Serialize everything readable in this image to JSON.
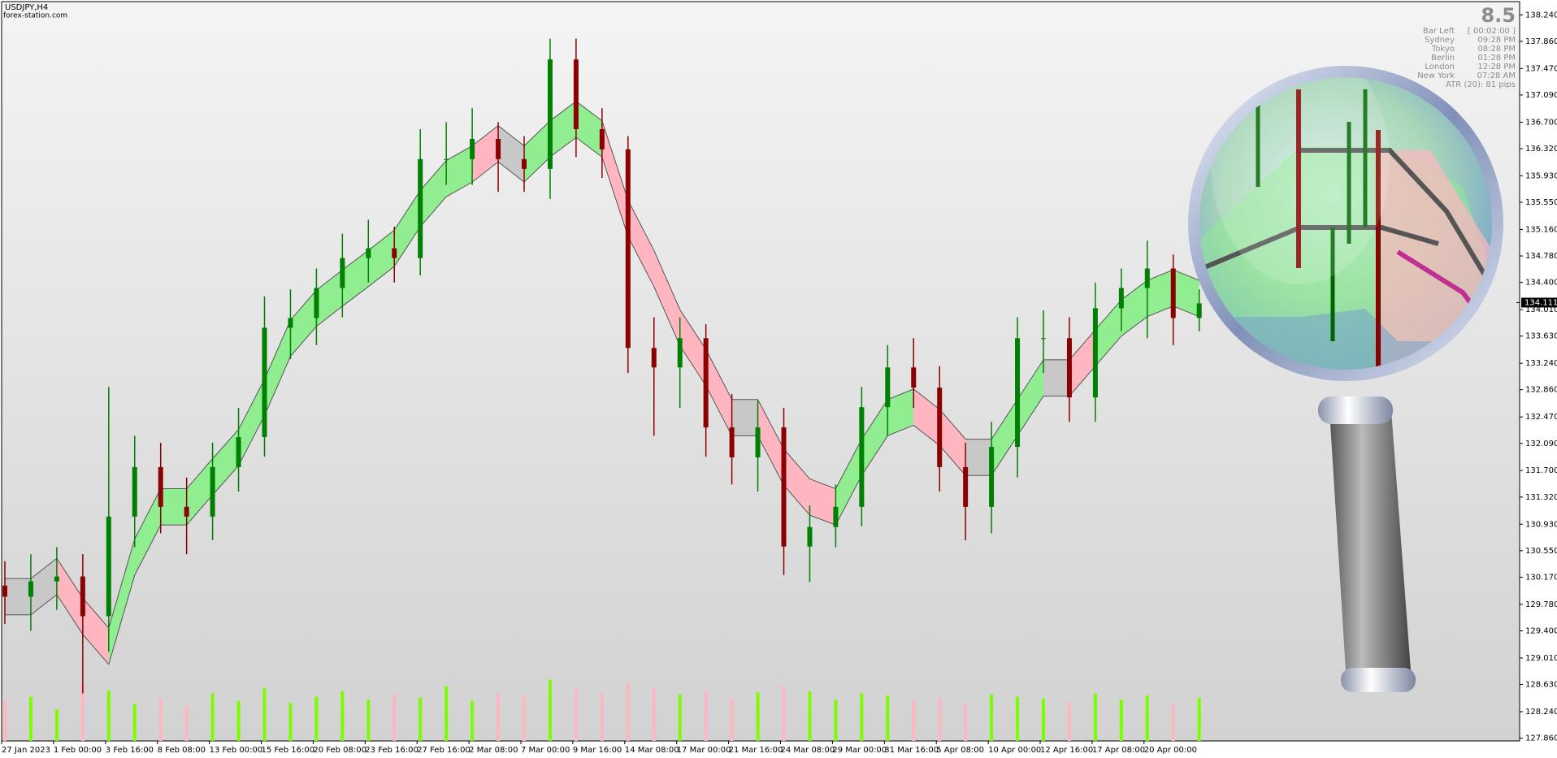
{
  "header": {
    "symbol": "USDJPY,H4",
    "source": "forex-station.com"
  },
  "info_panel": {
    "big_value": "8.5",
    "rows": [
      {
        "label": "Bar Left",
        "value": "[ 00:02:00 ]"
      },
      {
        "label": "Sydney",
        "value": "09:28 PM"
      },
      {
        "label": "Tokyo",
        "value": "08:28 PM"
      },
      {
        "label": "Berlin",
        "value": "01:28 PM"
      },
      {
        "label": "London",
        "value": "12:28 PM"
      },
      {
        "label": "New York",
        "value": "07:28 AM"
      }
    ],
    "atr": "ATR (20): 81 pips"
  },
  "chart_data": {
    "type": "candlestick",
    "categories": [
      "27 Jan 2023",
      "1 Feb 00:00",
      "3 Feb 16:00",
      "8 Feb 08:00",
      "13 Feb 00:00",
      "15 Feb 16:00",
      "20 Feb 08:00",
      "23 Feb 16:00",
      "27 Feb 16:00",
      "2 Mar 08:00",
      "7 Mar 00:00",
      "9 Mar 16:00",
      "14 Mar 08:00",
      "17 Mar 00:00",
      "21 Mar 16:00",
      "24 Mar 08:00",
      "29 Mar 00:00",
      "31 Mar 16:00",
      "5 Apr 08:00",
      "10 Apr 00:00",
      "12 Apr 16:00",
      "17 Apr 08:00",
      "20 Apr 00:00"
    ],
    "open": [
      130.05,
      129.89,
      130.11,
      130.18,
      129.61,
      131.04,
      131.75,
      131.18,
      131.04,
      131.75,
      132.18,
      133.75,
      133.89,
      134.32,
      134.75,
      134.89,
      134.75,
      136.17,
      136.17,
      136.46,
      136.17,
      136.03,
      137.6,
      136.6,
      136.31,
      133.46,
      133.18,
      133.6,
      132.32,
      131.89,
      132.32,
      130.61,
      130.89,
      131.18,
      132.61,
      133.18,
      132.89,
      131.75,
      131.18,
      132.04,
      133.6,
      133.6,
      132.75,
      134.03,
      134.32,
      134.6,
      133.89
    ],
    "high": [
      130.4,
      130.5,
      130.6,
      130.5,
      132.9,
      132.2,
      132.1,
      131.6,
      132.1,
      132.6,
      134.2,
      134.3,
      134.6,
      135.1,
      135.3,
      135.2,
      136.6,
      136.7,
      136.9,
      136.7,
      136.5,
      137.9,
      137.9,
      136.9,
      136.5,
      133.9,
      133.9,
      133.8,
      132.8,
      132.7,
      132.6,
      131.2,
      131.5,
      132.9,
      133.5,
      133.6,
      133.2,
      132.1,
      132.4,
      133.9,
      134.0,
      133.9,
      134.4,
      134.6,
      135.0,
      134.8,
      134.3
    ],
    "low": [
      129.5,
      129.4,
      129.7,
      128.5,
      129.1,
      130.6,
      130.8,
      130.5,
      130.7,
      131.4,
      131.9,
      133.3,
      133.5,
      133.9,
      134.4,
      134.4,
      134.5,
      135.8,
      135.8,
      135.7,
      135.7,
      135.6,
      136.2,
      135.9,
      133.1,
      132.2,
      132.6,
      131.9,
      131.5,
      131.4,
      130.2,
      130.1,
      130.6,
      130.9,
      132.2,
      132.6,
      131.4,
      130.7,
      130.8,
      131.6,
      133.1,
      132.4,
      132.4,
      133.7,
      133.6,
      133.5,
      133.7
    ],
    "close": [
      129.89,
      130.11,
      130.18,
      129.61,
      131.04,
      131.75,
      131.18,
      131.04,
      131.75,
      132.18,
      133.75,
      133.89,
      134.32,
      134.75,
      134.89,
      134.75,
      136.17,
      136.17,
      136.46,
      136.17,
      136.03,
      137.6,
      136.6,
      136.31,
      133.46,
      133.18,
      133.6,
      132.32,
      131.89,
      132.32,
      130.61,
      130.89,
      131.18,
      132.61,
      133.18,
      132.89,
      131.75,
      131.18,
      132.04,
      133.6,
      133.6,
      132.75,
      134.03,
      134.32,
      134.6,
      133.89,
      134.1
    ],
    "band_upper": [
      130.15,
      130.15,
      130.44,
      129.87,
      129.44,
      130.72,
      131.44,
      131.44,
      131.87,
      132.29,
      133.01,
      133.86,
      134.29,
      134.58,
      134.86,
      135.15,
      135.72,
      136.15,
      136.36,
      136.65,
      136.36,
      136.72,
      137.0,
      136.72,
      135.58,
      134.86,
      134.01,
      133.44,
      132.72,
      132.72,
      132.01,
      131.58,
      131.44,
      132.15,
      132.72,
      132.87,
      132.58,
      132.15,
      132.15,
      132.72,
      133.29,
      133.29,
      133.72,
      134.15,
      134.43,
      134.58,
      134.43
    ],
    "band_lower": [
      129.63,
      129.63,
      129.92,
      129.35,
      128.92,
      130.2,
      130.92,
      130.92,
      131.35,
      131.77,
      132.49,
      133.34,
      133.77,
      134.06,
      134.34,
      134.63,
      135.2,
      135.63,
      135.84,
      136.13,
      135.84,
      136.2,
      136.48,
      136.2,
      135.06,
      134.34,
      133.49,
      132.92,
      132.2,
      132.2,
      131.49,
      131.06,
      130.92,
      131.63,
      132.2,
      132.35,
      132.06,
      131.63,
      131.63,
      132.2,
      132.77,
      132.77,
      133.2,
      133.63,
      133.91,
      134.06,
      133.91
    ],
    "band_colors": [
      "#c8c8c8",
      "#c8c8c8",
      "#ffb6c1",
      "#ffb6c1",
      "#90ee90",
      "#90ee90",
      "#90ee90",
      "#90ee90",
      "#90ee90",
      "#90ee90",
      "#90ee90",
      "#90ee90",
      "#90ee90",
      "#90ee90",
      "#90ee90",
      "#90ee90",
      "#90ee90",
      "#90ee90",
      "#ffb6c1",
      "#c8c8c8",
      "#90ee90",
      "#90ee90",
      "#90ee90",
      "#ffb6c1",
      "#ffb6c1",
      "#ffb6c1",
      "#ffb6c1",
      "#ffb6c1",
      "#c8c8c8",
      "#ffb6c1",
      "#ffb6c1",
      "#ffb6c1",
      "#90ee90",
      "#90ee90",
      "#90ee90",
      "#ffb6c1",
      "#ffb6c1",
      "#c8c8c8",
      "#90ee90",
      "#90ee90",
      "#c8c8c8",
      "#ffb6c1",
      "#90ee90",
      "#90ee90",
      "#90ee90",
      "#90ee90",
      "#ffb6c1"
    ],
    "volume": [
      38,
      42,
      30,
      55,
      48,
      35,
      40,
      33,
      45,
      38,
      50,
      36,
      42,
      47,
      39,
      44,
      41,
      52,
      38,
      46,
      43,
      58,
      49,
      45,
      55,
      50,
      44,
      48,
      40,
      46,
      52,
      47,
      39,
      45,
      43,
      38,
      41,
      36,
      44,
      42,
      40,
      37,
      45,
      39,
      43,
      36,
      41
    ],
    "up_color": "#008000",
    "down_color": "#8b0000",
    "volume_up_color": "#7cfc00",
    "volume_down_color": "#ffb6c1",
    "ylim": [
      127.82,
      138.43
    ],
    "yticks": [
      {
        "value": 138.24,
        "label": "138.240"
      },
      {
        "value": 137.86,
        "label": "137.860"
      },
      {
        "value": 137.47,
        "label": "137.470"
      },
      {
        "value": 137.09,
        "label": "137.090"
      },
      {
        "value": 136.7,
        "label": "136.700"
      },
      {
        "value": 136.32,
        "label": "136.320"
      },
      {
        "value": 135.93,
        "label": "135.930"
      },
      {
        "value": 135.55,
        "label": "135.550"
      },
      {
        "value": 135.16,
        "label": "135.160"
      },
      {
        "value": 134.78,
        "label": "134.780"
      },
      {
        "value": 134.4,
        "label": "134.400"
      },
      {
        "value": 134.01,
        "label": "134.010"
      },
      {
        "value": 133.63,
        "label": "133.630"
      },
      {
        "value": 133.24,
        "label": "133.240"
      },
      {
        "value": 132.86,
        "label": "132.860"
      },
      {
        "value": 132.47,
        "label": "132.470"
      },
      {
        "value": 132.09,
        "label": "132.090"
      },
      {
        "value": 131.7,
        "label": "131.700"
      },
      {
        "value": 131.32,
        "label": "131.320"
      },
      {
        "value": 130.93,
        "label": "130.930"
      },
      {
        "value": 130.55,
        "label": "130.550"
      },
      {
        "value": 130.17,
        "label": "130.170"
      },
      {
        "value": 129.78,
        "label": "129.780"
      },
      {
        "value": 129.4,
        "label": "129.400"
      },
      {
        "value": 129.01,
        "label": "129.010"
      },
      {
        "value": 128.63,
        "label": "128.630"
      },
      {
        "value": 128.24,
        "label": "128.240"
      },
      {
        "value": 127.86,
        "label": "127.860"
      }
    ],
    "current_price": {
      "value": 134.111,
      "label": "134.111"
    }
  }
}
